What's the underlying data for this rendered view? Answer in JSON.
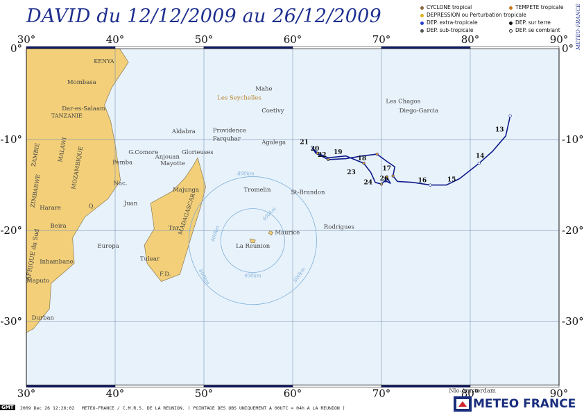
{
  "title": "DAVID du 12/12/2009 au 26/12/2009",
  "legend": [
    {
      "label": "CYCLONE tropical",
      "color": "#8a6a3a"
    },
    {
      "label": "TEMPETE tropicale",
      "color": "#c47a20"
    },
    {
      "label": "DEPRESSION ou Perturbation tropicale",
      "color": "#e0b020"
    },
    {
      "label": "DEP. sur terre",
      "color": "#111111"
    },
    {
      "label": "DEP. extra-tropicale",
      "color": "#2a3fd0"
    },
    {
      "label": "DEP. se comblant",
      "color": "#ffffff"
    },
    {
      "label": "DEP. sub-tropicale",
      "color": "#555555"
    }
  ],
  "side_label": "METEO-FRANCE",
  "map": {
    "lon_range": [
      30,
      90
    ],
    "lat_range": [
      -37,
      0
    ],
    "lon_ticks": [
      "30°",
      "40°",
      "50°",
      "60°",
      "70°",
      "80°",
      "90°"
    ],
    "lat_ticks": [
      "0°",
      "-10°",
      "-20°",
      "-30°"
    ],
    "colors": {
      "ocean": "#e8f2fb",
      "land": "#f2cf78",
      "grid": "#7a93b3",
      "track": "#0e1a8a",
      "track_label": "#111111",
      "place_label": "#444444",
      "range_circle": "#7fb0d8"
    }
  },
  "places": [
    {
      "name": "KENYA",
      "lon": 37.6,
      "lat": -1.6
    },
    {
      "name": "Mombasa",
      "lon": 34.6,
      "lat": -3.9
    },
    {
      "name": "Dar-es-Salaam",
      "lon": 34.0,
      "lat": -6.8
    },
    {
      "name": "TANZANIE",
      "lon": 32.8,
      "lat": -7.6
    },
    {
      "name": "Pemba",
      "lon": 39.7,
      "lat": -12.7
    },
    {
      "name": "Nac.",
      "lon": 39.8,
      "lat": -15.0
    },
    {
      "name": "MOZAMBIQUE",
      "lon": 35.5,
      "lat": -15.5
    },
    {
      "name": "Q.",
      "lon": 37.0,
      "lat": -17.5
    },
    {
      "name": "Harare",
      "lon": 31.5,
      "lat": -17.7
    },
    {
      "name": "Beira",
      "lon": 32.7,
      "lat": -19.7
    },
    {
      "name": "Inhambane",
      "lon": 31.5,
      "lat": -23.6
    },
    {
      "name": "Maputo",
      "lon": 30.0,
      "lat": -25.7
    },
    {
      "name": "Durban",
      "lon": 30.6,
      "lat": -29.8
    },
    {
      "name": "Europa",
      "lon": 38.0,
      "lat": -21.9
    },
    {
      "name": "Juan",
      "lon": 41.0,
      "lat": -17.2
    },
    {
      "name": "Aldabra",
      "lon": 46.4,
      "lat": -9.3
    },
    {
      "name": "G.Comore",
      "lon": 41.5,
      "lat": -11.6
    },
    {
      "name": "Anjouan",
      "lon": 44.5,
      "lat": -12.1
    },
    {
      "name": "Mayotte",
      "lon": 45.1,
      "lat": -12.8
    },
    {
      "name": "Glorieuses",
      "lon": 47.5,
      "lat": -11.6
    },
    {
      "name": "Majunga",
      "lon": 46.5,
      "lat": -15.7
    },
    {
      "name": "Tulear",
      "lon": 42.8,
      "lat": -23.3
    },
    {
      "name": "F.D.",
      "lon": 45.0,
      "lat": -25.0
    },
    {
      "name": "Tnr.",
      "lon": 46.0,
      "lat": -19.9
    },
    {
      "name": "MADAGASCAR",
      "lon": 47.5,
      "lat": -20.5
    },
    {
      "name": "Mahe",
      "lon": 55.8,
      "lat": -4.6
    },
    {
      "name": "Les Seychelles",
      "lon": 51.5,
      "lat": -5.6
    },
    {
      "name": "Coetivy",
      "lon": 56.5,
      "lat": -7.0
    },
    {
      "name": "Providence",
      "lon": 51.0,
      "lat": -9.2
    },
    {
      "name": "Farquhar",
      "lon": 51.0,
      "lat": -10.1
    },
    {
      "name": "Agalega",
      "lon": 56.5,
      "lat": -10.5
    },
    {
      "name": "Tromelin",
      "lon": 54.5,
      "lat": -15.7
    },
    {
      "name": "St-Brandon",
      "lon": 59.8,
      "lat": -16.0
    },
    {
      "name": "Rodrigues",
      "lon": 63.5,
      "lat": -19.8
    },
    {
      "name": "Maurice",
      "lon": 58.0,
      "lat": -20.4
    },
    {
      "name": "La Reunion",
      "lon": 53.6,
      "lat": -21.9
    },
    {
      "name": "Les Chagos",
      "lon": 70.5,
      "lat": -6.0
    },
    {
      "name": "Diego-Garcia",
      "lon": 72.0,
      "lat": -7.0
    },
    {
      "name": "ZAMBIE",
      "lon": 31.0,
      "lat": -13.0
    },
    {
      "name": "MALAWI",
      "lon": 34.0,
      "lat": -12.5
    },
    {
      "name": "ZIMBABWE",
      "lon": 30.9,
      "lat": -17.5
    },
    {
      "name": "AFRIQUE du Sud",
      "lon": 30.4,
      "lat": -25.5
    },
    {
      "name": "Nle-Amsterdam",
      "lon": 77.6,
      "lat": -37.8
    }
  ],
  "range_labels": [
    "400km",
    "800km",
    "400km",
    "800km",
    "400km",
    "800km"
  ],
  "track": {
    "points": [
      [
        84.5,
        -7.4
      ],
      [
        84.0,
        -9.6
      ],
      [
        82.5,
        -11.3
      ],
      [
        81.0,
        -12.6
      ],
      [
        78.8,
        -14.3
      ],
      [
        77.3,
        -15.0
      ],
      [
        75.5,
        -15.0
      ],
      [
        73.5,
        -14.7
      ],
      [
        71.8,
        -14.6
      ],
      [
        71.3,
        -14.0
      ],
      [
        71.5,
        -13.0
      ],
      [
        70.6,
        -12.4
      ],
      [
        69.5,
        -11.6
      ],
      [
        67.8,
        -11.8
      ],
      [
        66.0,
        -12.1
      ],
      [
        64.0,
        -12.2
      ],
      [
        62.6,
        -11.5
      ],
      [
        62.2,
        -10.9
      ],
      [
        62.8,
        -11.5
      ],
      [
        64.0,
        -12.0
      ],
      [
        66.0,
        -11.8
      ],
      [
        68.0,
        -12.6
      ],
      [
        68.8,
        -13.6
      ],
      [
        69.3,
        -14.7
      ],
      [
        70.0,
        -14.9
      ],
      [
        70.4,
        -14.5
      ],
      [
        71.0,
        -14.8
      ],
      [
        70.6,
        -14.1
      ],
      [
        70.4,
        -14.7
      ]
    ],
    "day_labels": [
      {
        "day": "13",
        "lon": 83.3,
        "lat": -9.1
      },
      {
        "day": "14",
        "lon": 81.1,
        "lat": -12.0
      },
      {
        "day": "15",
        "lon": 77.9,
        "lat": -14.6
      },
      {
        "day": "16",
        "lon": 74.6,
        "lat": -14.7
      },
      {
        "day": "17",
        "lon": 70.6,
        "lat": -13.4
      },
      {
        "day": "18",
        "lon": 67.8,
        "lat": -12.3
      },
      {
        "day": "19",
        "lon": 65.1,
        "lat": -11.6
      },
      {
        "day": "20",
        "lon": 62.5,
        "lat": -11.2
      },
      {
        "day": "21",
        "lon": 61.3,
        "lat": -10.5
      },
      {
        "day": "22",
        "lon": 63.3,
        "lat": -11.9
      },
      {
        "day": "23",
        "lon": 66.6,
        "lat": -13.8
      },
      {
        "day": "24",
        "lon": 68.5,
        "lat": -14.9
      },
      {
        "day": "26",
        "lon": 70.3,
        "lat": -14.5
      }
    ]
  },
  "footer": {
    "gmt_label": "GMT",
    "timestamp": "2009 Dec 26 12:26:02",
    "credit": "METEO-FRANCE / C.M.R.S. DE LA REUNION.  ( POINTAGE DES OBS UNIQUEMENT A 00UTC = 04h A LA REUNION )"
  },
  "brand": "METEO FRANCE"
}
